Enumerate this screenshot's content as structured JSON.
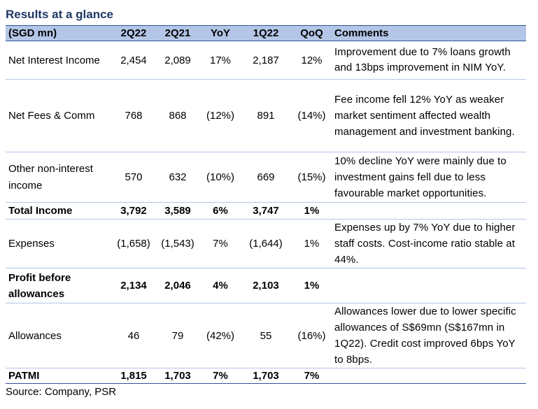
{
  "title": "Results at a glance",
  "headers": [
    "(SGD mn)",
    "2Q22",
    "2Q21",
    "YoY",
    "1Q22",
    "QoQ",
    "Comments"
  ],
  "rows": [
    {
      "label": "Net Interest Income",
      "q2q22": "2,454",
      "q2q21": "2,089",
      "yoy": "17%",
      "q1q22": "2,187",
      "qoq": "12%",
      "comment": "Improvement due to 7% loans growth and 13bps improvement in NIM YoY.",
      "bold": false
    },
    {
      "label": "Net Fees & Comm",
      "q2q22": "768",
      "q2q21": "868",
      "yoy": "(12%)",
      "q1q22": "891",
      "qoq": "(14%)",
      "comment": "Fee income fell 12% YoY as weaker market sentiment affected wealth management and investment banking.",
      "bold": false
    },
    {
      "label": "Other non-interest income",
      "q2q22": "570",
      "q2q21": "632",
      "yoy": "(10%)",
      "q1q22": "669",
      "qoq": "(15%)",
      "comment": "10% decline YoY were mainly due to investment gains fell due to less favourable market opportunities.",
      "bold": false
    },
    {
      "label": "Total Income",
      "q2q22": "3,792",
      "q2q21": "3,589",
      "yoy": "6%",
      "q1q22": "3,747",
      "qoq": "1%",
      "comment": "",
      "bold": true
    },
    {
      "label": "Expenses",
      "q2q22": "(1,658)",
      "q2q21": "(1,543)",
      "yoy": "7%",
      "q1q22": "(1,644)",
      "qoq": "1%",
      "comment": "Expenses up by 7% YoY due to higher staff costs. Cost-income ratio stable at 44%.",
      "bold": false
    },
    {
      "label": "Profit before allowances",
      "q2q22": "2,134",
      "q2q21": "2,046",
      "yoy": "4%",
      "q1q22": "2,103",
      "qoq": "1%",
      "comment": "",
      "bold": true
    },
    {
      "label": "Allowances",
      "q2q22": "46",
      "q2q21": "79",
      "yoy": "(42%)",
      "q1q22": "55",
      "qoq": "(16%)",
      "comment": "Allowances lower due to lower specific allowances of S$69mn (S$167mn in 1Q22). Credit cost improved 6bps YoY to 8bps.",
      "bold": false
    },
    {
      "label": "PATMI",
      "q2q22": "1,815",
      "q2q21": "1,703",
      "yoy": "7%",
      "q1q22": "1,703",
      "qoq": "7%",
      "comment": "",
      "bold": true
    }
  ],
  "source": "Source: Company, PSR"
}
